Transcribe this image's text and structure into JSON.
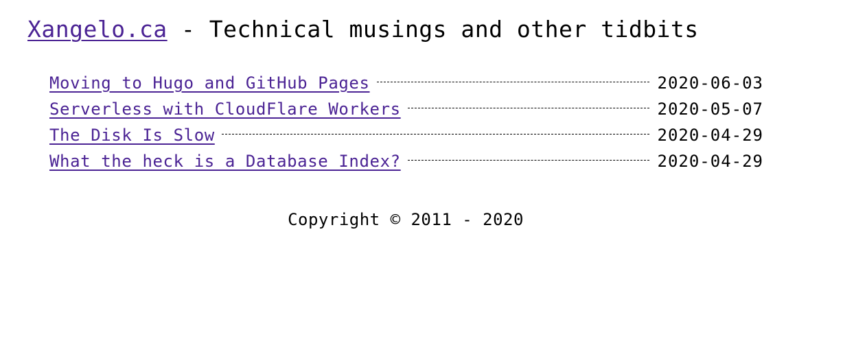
{
  "header": {
    "site_name": "Xangelo.ca",
    "tagline": " - Technical musings and other tidbits"
  },
  "posts": [
    {
      "title": "Moving to Hugo and GitHub Pages",
      "date": "2020-06-03"
    },
    {
      "title": "Serverless with CloudFlare Workers",
      "date": "2020-05-07"
    },
    {
      "title": "The Disk Is Slow",
      "date": "2020-04-29"
    },
    {
      "title": "What the heck is a Database Index?",
      "date": "2020-04-29"
    }
  ],
  "footer": {
    "copyright": "Copyright © 2011 - 2020"
  },
  "colors": {
    "link": "#4b2394",
    "text": "#000000",
    "background": "#ffffff"
  }
}
